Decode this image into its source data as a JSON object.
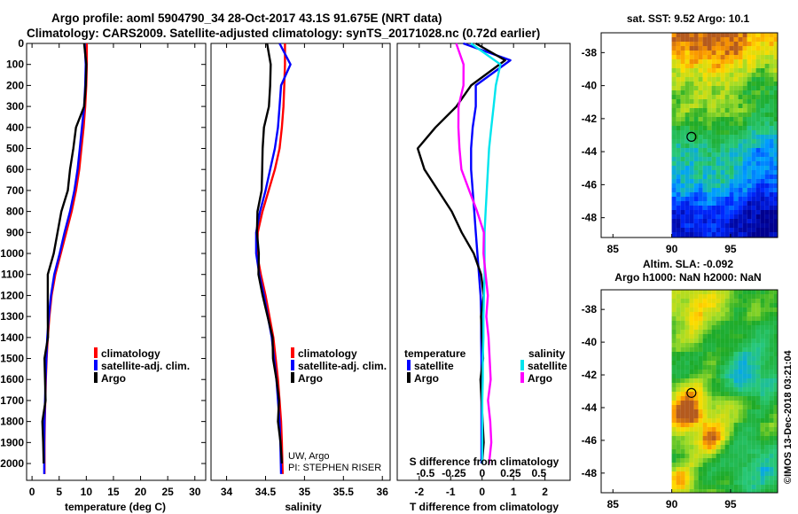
{
  "titles": {
    "line1": "Argo profile: aoml 5904790_34 28-Oct-2017 43.1S 91.675E (NRT data)",
    "line2": "Climatology: CARS2009. Satellite-adjusted climatology: synTS_20171028.nc (0.72d earlier)"
  },
  "colors": {
    "climatology": "#ff0000",
    "satellite": "#0000ff",
    "argo": "#000000",
    "sal_satellite": "#00e5ee",
    "sal_argo": "#ff00ff"
  },
  "chart_data": [
    {
      "type": "line",
      "id": "temperature",
      "xlabel": "temperature (deg C)",
      "ylabel": "depth (dbar)",
      "xlim": [
        -1,
        32
      ],
      "ylim": [
        2080,
        0
      ],
      "xticks": [
        "0",
        "5",
        "10",
        "15",
        "20",
        "25",
        "30"
      ],
      "yticks": [
        "0",
        "100",
        "200",
        "300",
        "400",
        "500",
        "600",
        "700",
        "800",
        "900",
        "1000",
        "1100",
        "1200",
        "1300",
        "1400",
        "1500",
        "1600",
        "1700",
        "1800",
        "1900",
        "2000"
      ],
      "legend": [
        "climatology",
        "satellite-adj. clim.",
        "Argo"
      ],
      "series": [
        {
          "name": "climatology",
          "x": [
            10.1,
            10.1,
            10.0,
            9.8,
            9.5,
            9.1,
            8.7,
            8.1,
            7.3,
            6.3,
            5.3,
            4.3,
            3.6,
            3.2,
            2.9,
            2.7,
            2.55,
            2.45,
            2.35,
            2.3,
            2.3
          ],
          "y": [
            0,
            100,
            200,
            300,
            400,
            500,
            600,
            700,
            800,
            900,
            1000,
            1100,
            1200,
            1300,
            1400,
            1500,
            1600,
            1700,
            1800,
            1900,
            2050
          ]
        },
        {
          "name": "satellite-adj. clim.",
          "x": [
            9.7,
            9.9,
            9.8,
            9.6,
            9.2,
            8.8,
            8.4,
            7.8,
            7.0,
            6.0,
            5.1,
            4.1,
            3.5,
            3.1,
            2.8,
            2.65,
            2.5,
            2.4,
            2.3,
            2.25,
            2.25
          ],
          "y": [
            0,
            100,
            200,
            300,
            400,
            500,
            600,
            700,
            800,
            900,
            1000,
            1100,
            1200,
            1300,
            1400,
            1500,
            1600,
            1700,
            1800,
            1900,
            2050
          ]
        },
        {
          "name": "Argo",
          "x": [
            9.6,
            10.2,
            9.9,
            9.4,
            8.4,
            7.7,
            6.9,
            6.3,
            5.6,
            4.7,
            3.8,
            3.2,
            3.0,
            2.8,
            2.65,
            2.5,
            2.4,
            2.3,
            2.2,
            2.15,
            2.15
          ],
          "y": [
            0,
            100,
            200,
            300,
            400,
            500,
            600,
            700,
            800,
            900,
            1000,
            1100,
            1200,
            1300,
            1400,
            1500,
            1600,
            1700,
            1800,
            1900,
            2000
          ]
        }
      ]
    },
    {
      "type": "line",
      "id": "salinity",
      "xlabel": "salinity",
      "xlim": [
        33.8,
        36.1
      ],
      "ylim": [
        2080,
        0
      ],
      "xticks": [
        "34",
        "34.5",
        "35",
        "35.5",
        "36"
      ],
      "legend": [
        "climatology",
        "satellite-adj. clim.",
        "Argo"
      ],
      "annotations": [
        "UW, Argo",
        "PI: STEPHEN RISER"
      ],
      "series": [
        {
          "name": "climatology",
          "x": [
            34.75,
            34.75,
            34.74,
            34.73,
            34.71,
            34.68,
            34.62,
            34.54,
            34.46,
            34.4,
            34.39,
            34.44,
            34.5,
            34.55,
            34.6,
            34.63,
            34.66,
            34.68,
            34.7,
            34.71,
            34.72
          ],
          "y": [
            0,
            100,
            200,
            300,
            400,
            500,
            600,
            700,
            800,
            900,
            1000,
            1100,
            1200,
            1300,
            1400,
            1500,
            1600,
            1700,
            1800,
            1900,
            2050
          ]
        },
        {
          "name": "satellite-adj. clim.",
          "x": [
            34.68,
            34.82,
            34.7,
            34.68,
            34.66,
            34.62,
            34.56,
            34.5,
            34.43,
            34.38,
            34.38,
            34.42,
            34.48,
            34.53,
            34.58,
            34.61,
            34.64,
            34.66,
            34.68,
            34.69,
            34.7
          ],
          "y": [
            0,
            100,
            200,
            300,
            400,
            500,
            600,
            700,
            800,
            900,
            1000,
            1100,
            1200,
            1300,
            1400,
            1500,
            1600,
            1700,
            1800,
            1900,
            2050
          ]
        },
        {
          "name": "Argo",
          "x": [
            34.52,
            34.58,
            34.56,
            34.53,
            34.5,
            34.47,
            34.45,
            34.43,
            34.41,
            34.39,
            34.4,
            34.43,
            34.47,
            34.52,
            34.57,
            34.61,
            34.64,
            34.66,
            34.68,
            34.7,
            34.71
          ],
          "y": [
            0,
            100,
            200,
            300,
            400,
            500,
            600,
            700,
            800,
            900,
            1000,
            1100,
            1200,
            1300,
            1400,
            1500,
            1600,
            1700,
            1800,
            1900,
            2000
          ]
        }
      ]
    },
    {
      "type": "line",
      "id": "differences",
      "xlabel": "T difference from climatology",
      "x2label": "S difference from climatology",
      "xlim": [
        -2.7,
        2.8
      ],
      "x2lim": [
        -0.75,
        0.775
      ],
      "ylim": [
        2080,
        0
      ],
      "xticks": [
        "-2",
        "-1",
        "0",
        "1",
        "2"
      ],
      "x2ticks": [
        "-0.5",
        "-0.25",
        "0",
        "0.25",
        "0.5"
      ],
      "legend_temperature_title": "temperature",
      "legend_salinity_title": "salinity",
      "legend_temperature": [
        "satellite",
        "Argo"
      ],
      "legend_salinity": [
        "satellite",
        "Argo"
      ],
      "series": [
        {
          "name": "temperature satellite",
          "axis": "T",
          "x": [
            -0.6,
            0.9,
            -0.2,
            -0.2,
            -0.3,
            -0.35,
            -0.35,
            -0.3,
            -0.25,
            -0.2,
            -0.15,
            -0.1,
            -0.05,
            -0.03,
            -0.03,
            -0.02,
            -0.02,
            -0.02,
            -0.02,
            -0.02,
            -0.02
          ],
          "y": [
            0,
            80,
            200,
            300,
            400,
            500,
            600,
            700,
            800,
            900,
            1000,
            1100,
            1200,
            1300,
            1400,
            1500,
            1600,
            1700,
            1800,
            1900,
            2000
          ]
        },
        {
          "name": "temperature Argo",
          "axis": "T",
          "x": [
            -0.2,
            0.7,
            -0.3,
            -0.8,
            -1.5,
            -2.1,
            -1.8,
            -1.4,
            -1.0,
            -0.6,
            -0.25,
            -0.05,
            0.0,
            0.0,
            0.0,
            0.0,
            0.0,
            0.0,
            0.0,
            0.0,
            0.0
          ],
          "y": [
            0,
            80,
            200,
            300,
            400,
            500,
            600,
            700,
            800,
            900,
            1000,
            1100,
            1200,
            1300,
            1400,
            1500,
            1600,
            1700,
            1800,
            1900,
            2000
          ]
        },
        {
          "name": "salinity satellite",
          "axis": "S",
          "x": [
            -0.1,
            0.16,
            0.12,
            0.1,
            0.08,
            0.06,
            0.05,
            0.04,
            0.03,
            0.02,
            0.02,
            0.02,
            0.015,
            0.01,
            0.01,
            0.005,
            0.005,
            0.0,
            0.0,
            0.0,
            0.0
          ],
          "y": [
            0,
            100,
            200,
            300,
            400,
            500,
            600,
            700,
            800,
            900,
            1000,
            1100,
            1200,
            1300,
            1400,
            1500,
            1600,
            1700,
            1800,
            1900,
            2000
          ]
        },
        {
          "name": "salinity Argo",
          "axis": "S",
          "x": [
            -0.23,
            -0.17,
            -0.18,
            -0.2,
            -0.21,
            -0.21,
            -0.17,
            -0.11,
            -0.05,
            0.0,
            0.02,
            0.03,
            0.04,
            0.05,
            0.06,
            0.06,
            0.06,
            0.06,
            0.07,
            0.07,
            0.06
          ],
          "y": [
            0,
            100,
            200,
            300,
            400,
            500,
            600,
            700,
            800,
            900,
            1000,
            1100,
            1200,
            1300,
            1400,
            1500,
            1600,
            1700,
            1800,
            1900,
            2000
          ]
        }
      ]
    },
    {
      "type": "heatmap",
      "id": "sst_map",
      "title": "sat. SST: 9.52 Argo: 10.1",
      "xticks": [
        "85",
        "90",
        "95"
      ],
      "yticks": [
        "-38",
        "-40",
        "-42",
        "-44",
        "-46",
        "-48"
      ],
      "xlim": [
        84,
        99
      ],
      "ylim": [
        -49.2,
        -36.8
      ],
      "marker": {
        "lon": 91.675,
        "lat": -43.1
      }
    },
    {
      "type": "heatmap",
      "id": "sla_map",
      "title": "Altim. SLA: -0.092",
      "subtitle": "Argo h1000: NaN h2000: NaN",
      "xticks": [
        "85",
        "90",
        "95"
      ],
      "yticks": [
        "-38",
        "-40",
        "-42",
        "-44",
        "-46",
        "-48"
      ],
      "xlim": [
        84,
        99
      ],
      "ylim": [
        -49.2,
        -36.8
      ],
      "marker": {
        "lon": 91.675,
        "lat": -43.1
      }
    }
  ],
  "watermark": "©IMOS 13-Dec-2018 03:21:04"
}
